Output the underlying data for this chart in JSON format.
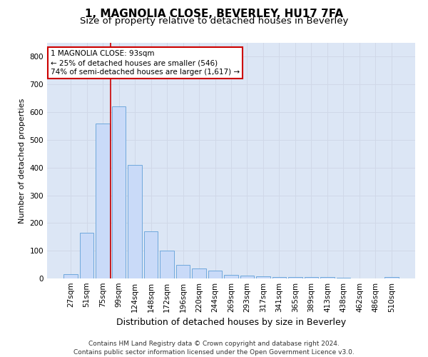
{
  "title1": "1, MAGNOLIA CLOSE, BEVERLEY, HU17 7FA",
  "title2": "Size of property relative to detached houses in Beverley",
  "xlabel": "Distribution of detached houses by size in Beverley",
  "ylabel": "Number of detached properties",
  "categories": [
    "27sqm",
    "51sqm",
    "75sqm",
    "99sqm",
    "124sqm",
    "148sqm",
    "172sqm",
    "196sqm",
    "220sqm",
    "244sqm",
    "269sqm",
    "293sqm",
    "317sqm",
    "341sqm",
    "365sqm",
    "389sqm",
    "413sqm",
    "438sqm",
    "462sqm",
    "486sqm",
    "510sqm"
  ],
  "values": [
    15,
    165,
    560,
    620,
    410,
    170,
    100,
    50,
    37,
    28,
    12,
    10,
    7,
    5,
    5,
    5,
    5,
    2,
    1,
    0,
    5
  ],
  "bar_color": "#c9daf8",
  "bar_edge_color": "#6fa8dc",
  "grid_color": "#d0d8e8",
  "background_color": "#dce6f5",
  "vline_x": 2.5,
  "vline_color": "#cc0000",
  "annotation_text": "1 MAGNOLIA CLOSE: 93sqm\n← 25% of detached houses are smaller (546)\n74% of semi-detached houses are larger (1,617) →",
  "annotation_box_color": "#ffffff",
  "annotation_box_edge": "#cc0000",
  "footnote": "Contains HM Land Registry data © Crown copyright and database right 2024.\nContains public sector information licensed under the Open Government Licence v3.0.",
  "ylim": [
    0,
    850
  ],
  "yticks": [
    0,
    100,
    200,
    300,
    400,
    500,
    600,
    700,
    800
  ],
  "title1_fontsize": 11,
  "title2_fontsize": 9.5,
  "xlabel_fontsize": 9,
  "ylabel_fontsize": 8,
  "tick_fontsize": 7.5,
  "footnote_fontsize": 6.5,
  "annot_fontsize": 7.5
}
